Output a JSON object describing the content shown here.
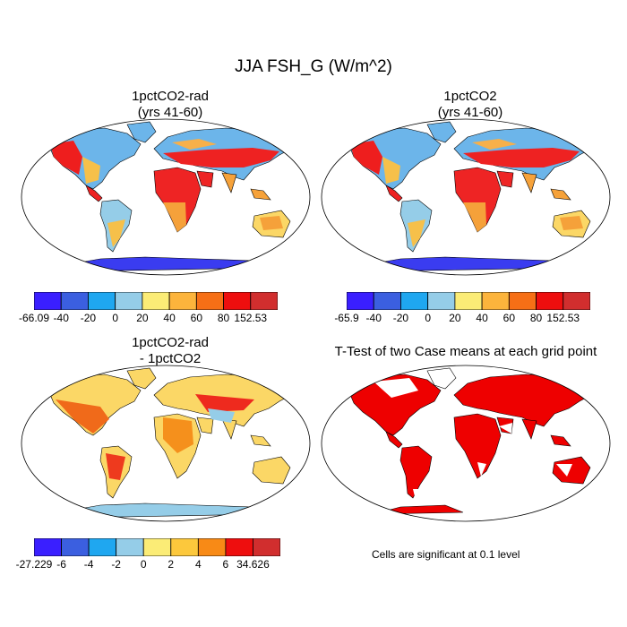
{
  "figure": {
    "title": "JJA FSH_G (W/m^2)"
  },
  "panels": [
    {
      "title_line1": "1pctCO2-rad",
      "title_line2": "(yrs 41-60)"
    },
    {
      "title_line1": "1pctCO2",
      "title_line2": "(yrs 41-60)"
    },
    {
      "title_line1": "1pctCO2-rad",
      "title_line2": "- 1pctCO2"
    },
    {
      "title_line1": "T-Test of two Case means at each grid point",
      "title_line2": ""
    }
  ],
  "colorbars": [
    {
      "labels": [
        "-66.09",
        "-40",
        "-20",
        "0",
        "20",
        "40",
        "60",
        "80",
        "152.53"
      ],
      "colors": [
        "#3a1fff",
        "#3b5fe0",
        "#1fa7f0",
        "#95cde8",
        "#fbec76",
        "#fcb43c",
        "#f66f16",
        "#ee0e0e",
        "#d12e2e"
      ]
    },
    {
      "labels": [
        "-65.9",
        "-40",
        "-20",
        "0",
        "20",
        "40",
        "60",
        "80",
        "152.53"
      ],
      "colors": [
        "#3a1fff",
        "#3b5fe0",
        "#1fa7f0",
        "#95cde8",
        "#fbec76",
        "#fcb43c",
        "#f66f16",
        "#ee0e0e",
        "#d12e2e"
      ]
    },
    {
      "labels": [
        "-27.229",
        "-6",
        "-4",
        "-2",
        "0",
        "2",
        "4",
        "6",
        "34.626"
      ],
      "colors": [
        "#3a1fff",
        "#3b5fe0",
        "#1fa7f0",
        "#95cde8",
        "#fbec76",
        "#fcc83c",
        "#f88a16",
        "#ee0e0e",
        "#d12e2e"
      ]
    }
  ],
  "significance_note": "Cells are significant at 0.1 level",
  "colors": {
    "significant": "#ee0000",
    "outline": "#000000"
  }
}
